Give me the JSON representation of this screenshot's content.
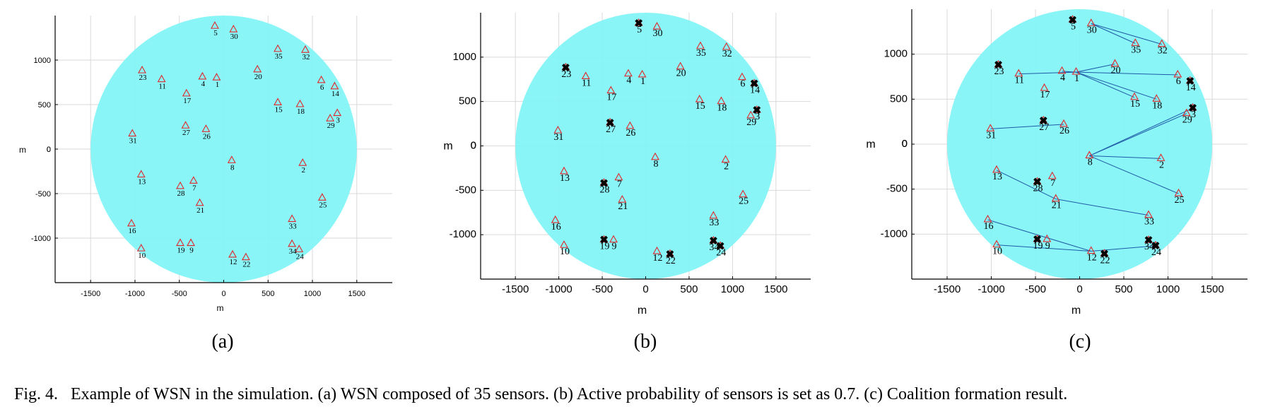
{
  "caption": {
    "label": "Fig. 4.",
    "text": "Example of WSN in the simulation. (a) WSN composed of 35 sensors. (b) Active probability of sensors is set as 0.7. (c) Coalition formation result."
  },
  "colors": {
    "field": "#80f4f6",
    "grid": "#d9d9d9",
    "triangle": "#e0282b",
    "link": "#1f5aa6",
    "active": "#000000"
  },
  "chart_data": [
    {
      "type": "scatter",
      "panel_label": "(a)",
      "xlabel": "m",
      "ylabel": "m",
      "xlim": [
        -1900,
        1900
      ],
      "ylim": [
        -1500,
        1500
      ],
      "xticks": [
        -1500,
        -1000,
        -500,
        0,
        500,
        1000,
        1500
      ],
      "yticks": [
        -1000,
        -500,
        0,
        500,
        1000
      ],
      "xtick_labels": [
        "-1500",
        "-1000",
        "-500",
        "0",
        "500",
        "1000",
        "1500"
      ],
      "ytick_labels": [
        "-1000",
        "-500",
        "0",
        "500",
        "1000"
      ],
      "grid": true,
      "field": {
        "shape": "circle",
        "center": [
          0,
          0
        ],
        "radius": 1500
      },
      "sensors": [
        {
          "id": "1",
          "x": -80,
          "y": 800
        },
        {
          "id": "2",
          "x": 890,
          "y": -160
        },
        {
          "id": "3",
          "x": 1280,
          "y": 400
        },
        {
          "id": "4",
          "x": -240,
          "y": 810
        },
        {
          "id": "5",
          "x": -100,
          "y": 1380
        },
        {
          "id": "6",
          "x": 1100,
          "y": 770
        },
        {
          "id": "7",
          "x": -340,
          "y": -360
        },
        {
          "id": "8",
          "x": 90,
          "y": -130
        },
        {
          "id": "9",
          "x": -370,
          "y": -1060
        },
        {
          "id": "10",
          "x": -930,
          "y": -1120
        },
        {
          "id": "11",
          "x": -700,
          "y": 780
        },
        {
          "id": "12",
          "x": 100,
          "y": -1190
        },
        {
          "id": "13",
          "x": -930,
          "y": -290
        },
        {
          "id": "14",
          "x": 1250,
          "y": 700
        },
        {
          "id": "15",
          "x": 610,
          "y": 520
        },
        {
          "id": "16",
          "x": -1040,
          "y": -840
        },
        {
          "id": "17",
          "x": -420,
          "y": 620
        },
        {
          "id": "18",
          "x": 860,
          "y": 500
        },
        {
          "id": "19",
          "x": -490,
          "y": -1060
        },
        {
          "id": "20",
          "x": 380,
          "y": 890
        },
        {
          "id": "21",
          "x": -270,
          "y": -610
        },
        {
          "id": "22",
          "x": 250,
          "y": -1220
        },
        {
          "id": "23",
          "x": -920,
          "y": 880
        },
        {
          "id": "24",
          "x": 850,
          "y": -1130
        },
        {
          "id": "25",
          "x": 1110,
          "y": -550
        },
        {
          "id": "26",
          "x": -200,
          "y": 220
        },
        {
          "id": "27",
          "x": -430,
          "y": 260
        },
        {
          "id": "28",
          "x": -490,
          "y": -420
        },
        {
          "id": "29",
          "x": 1200,
          "y": 340
        },
        {
          "id": "30",
          "x": 110,
          "y": 1340
        },
        {
          "id": "31",
          "x": -1030,
          "y": 170
        },
        {
          "id": "32",
          "x": 920,
          "y": 1110
        },
        {
          "id": "33",
          "x": 770,
          "y": -790
        },
        {
          "id": "34",
          "x": 770,
          "y": -1070
        },
        {
          "id": "35",
          "x": 610,
          "y": 1120
        }
      ],
      "active": [],
      "links": []
    },
    {
      "type": "scatter",
      "panel_label": "(b)",
      "xlabel": "m",
      "ylabel": "m",
      "xlim": [
        -1900,
        1900
      ],
      "ylim": [
        -1500,
        1500
      ],
      "xticks": [
        -1500,
        -1000,
        -500,
        0,
        500,
        1000,
        1500
      ],
      "yticks": [
        -1000,
        -500,
        0,
        500,
        1000
      ],
      "xtick_labels": [
        "-1500",
        "-1000",
        "-500",
        "0",
        "500",
        "1000",
        "1500"
      ],
      "ytick_labels": [
        "-1000",
        "-500",
        "0",
        "500",
        "1000"
      ],
      "grid": true,
      "field": {
        "shape": "circle",
        "center": [
          0,
          0
        ],
        "radius": 1500
      },
      "sensors": [
        {
          "id": "1",
          "x": -40,
          "y": 800
        },
        {
          "id": "2",
          "x": 920,
          "y": -160
        },
        {
          "id": "3",
          "x": 1280,
          "y": 400
        },
        {
          "id": "4",
          "x": -200,
          "y": 810
        },
        {
          "id": "5",
          "x": -80,
          "y": 1380
        },
        {
          "id": "6",
          "x": 1110,
          "y": 770
        },
        {
          "id": "7",
          "x": -310,
          "y": -360
        },
        {
          "id": "8",
          "x": 110,
          "y": -130
        },
        {
          "id": "9",
          "x": -370,
          "y": -1060
        },
        {
          "id": "10",
          "x": -940,
          "y": -1120
        },
        {
          "id": "11",
          "x": -690,
          "y": 780
        },
        {
          "id": "12",
          "x": 130,
          "y": -1190
        },
        {
          "id": "13",
          "x": -940,
          "y": -290
        },
        {
          "id": "14",
          "x": 1250,
          "y": 700
        },
        {
          "id": "15",
          "x": 620,
          "y": 520
        },
        {
          "id": "16",
          "x": -1040,
          "y": -840
        },
        {
          "id": "17",
          "x": -400,
          "y": 620
        },
        {
          "id": "18",
          "x": 870,
          "y": 500
        },
        {
          "id": "19",
          "x": -480,
          "y": -1060
        },
        {
          "id": "20",
          "x": 400,
          "y": 890
        },
        {
          "id": "21",
          "x": -270,
          "y": -610
        },
        {
          "id": "22",
          "x": 280,
          "y": -1220
        },
        {
          "id": "23",
          "x": -920,
          "y": 880
        },
        {
          "id": "24",
          "x": 860,
          "y": -1130
        },
        {
          "id": "25",
          "x": 1120,
          "y": -550
        },
        {
          "id": "26",
          "x": -180,
          "y": 220
        },
        {
          "id": "27",
          "x": -410,
          "y": 260
        },
        {
          "id": "28",
          "x": -480,
          "y": -420
        },
        {
          "id": "29",
          "x": 1210,
          "y": 340
        },
        {
          "id": "30",
          "x": 130,
          "y": 1340
        },
        {
          "id": "31",
          "x": -1010,
          "y": 170
        },
        {
          "id": "32",
          "x": 930,
          "y": 1110
        },
        {
          "id": "33",
          "x": 780,
          "y": -790
        },
        {
          "id": "34",
          "x": 780,
          "y": -1070
        },
        {
          "id": "35",
          "x": 630,
          "y": 1120
        }
      ],
      "active": [
        "3",
        "5",
        "14",
        "23",
        "24",
        "27",
        "28",
        "19",
        "34",
        "22"
      ],
      "links": []
    },
    {
      "type": "scatter",
      "panel_label": "(c)",
      "xlabel": "m",
      "ylabel": "m",
      "xlim": [
        -1900,
        1900
      ],
      "ylim": [
        -1500,
        1500
      ],
      "xticks": [
        -1500,
        -1000,
        -500,
        0,
        500,
        1000,
        1500
      ],
      "yticks": [
        -1000,
        -500,
        0,
        500,
        1000
      ],
      "xtick_labels": [
        "-1500",
        "-1000",
        "-500",
        "0",
        "500",
        "1000",
        "1500"
      ],
      "ytick_labels": [
        "-1000",
        "-500",
        "0",
        "500",
        "1000"
      ],
      "grid": true,
      "field": {
        "shape": "circle",
        "center": [
          0,
          0
        ],
        "radius": 1500
      },
      "sensors": [
        {
          "id": "1",
          "x": -40,
          "y": 800
        },
        {
          "id": "2",
          "x": 920,
          "y": -160
        },
        {
          "id": "3",
          "x": 1280,
          "y": 400
        },
        {
          "id": "4",
          "x": -200,
          "y": 810
        },
        {
          "id": "5",
          "x": -80,
          "y": 1380
        },
        {
          "id": "6",
          "x": 1110,
          "y": 770
        },
        {
          "id": "7",
          "x": -310,
          "y": -360
        },
        {
          "id": "8",
          "x": 110,
          "y": -130
        },
        {
          "id": "9",
          "x": -370,
          "y": -1060
        },
        {
          "id": "10",
          "x": -940,
          "y": -1120
        },
        {
          "id": "11",
          "x": -690,
          "y": 780
        },
        {
          "id": "12",
          "x": 130,
          "y": -1190
        },
        {
          "id": "13",
          "x": -940,
          "y": -290
        },
        {
          "id": "14",
          "x": 1250,
          "y": 700
        },
        {
          "id": "15",
          "x": 620,
          "y": 520
        },
        {
          "id": "16",
          "x": -1040,
          "y": -840
        },
        {
          "id": "17",
          "x": -400,
          "y": 620
        },
        {
          "id": "18",
          "x": 870,
          "y": 500
        },
        {
          "id": "19",
          "x": -480,
          "y": -1060
        },
        {
          "id": "20",
          "x": 400,
          "y": 890
        },
        {
          "id": "21",
          "x": -270,
          "y": -610
        },
        {
          "id": "22",
          "x": 280,
          "y": -1220
        },
        {
          "id": "23",
          "x": -920,
          "y": 880
        },
        {
          "id": "24",
          "x": 860,
          "y": -1130
        },
        {
          "id": "25",
          "x": 1120,
          "y": -550
        },
        {
          "id": "26",
          "x": -180,
          "y": 220
        },
        {
          "id": "27",
          "x": -410,
          "y": 260
        },
        {
          "id": "28",
          "x": -480,
          "y": -420
        },
        {
          "id": "29",
          "x": 1210,
          "y": 340
        },
        {
          "id": "30",
          "x": 130,
          "y": 1340
        },
        {
          "id": "31",
          "x": -1010,
          "y": 170
        },
        {
          "id": "32",
          "x": 930,
          "y": 1110
        },
        {
          "id": "33",
          "x": 780,
          "y": -790
        },
        {
          "id": "34",
          "x": 780,
          "y": -1070
        },
        {
          "id": "35",
          "x": 630,
          "y": 1120
        }
      ],
      "active": [
        "3",
        "5",
        "14",
        "23",
        "24",
        "27",
        "28",
        "19",
        "34",
        "22"
      ],
      "links": [
        [
          "30",
          "35"
        ],
        [
          "30",
          "32"
        ],
        [
          "1",
          "4"
        ],
        [
          "1",
          "11"
        ],
        [
          "1",
          "20"
        ],
        [
          "1",
          "6"
        ],
        [
          "1",
          "15"
        ],
        [
          "1",
          "18"
        ],
        [
          "31",
          "26"
        ],
        [
          "8",
          "29"
        ],
        [
          "8",
          "3"
        ],
        [
          "8",
          "2"
        ],
        [
          "8",
          "25"
        ],
        [
          "13",
          "21"
        ],
        [
          "21",
          "33"
        ],
        [
          "16",
          "12"
        ],
        [
          "10",
          "12"
        ],
        [
          "12",
          "24"
        ]
      ]
    }
  ]
}
